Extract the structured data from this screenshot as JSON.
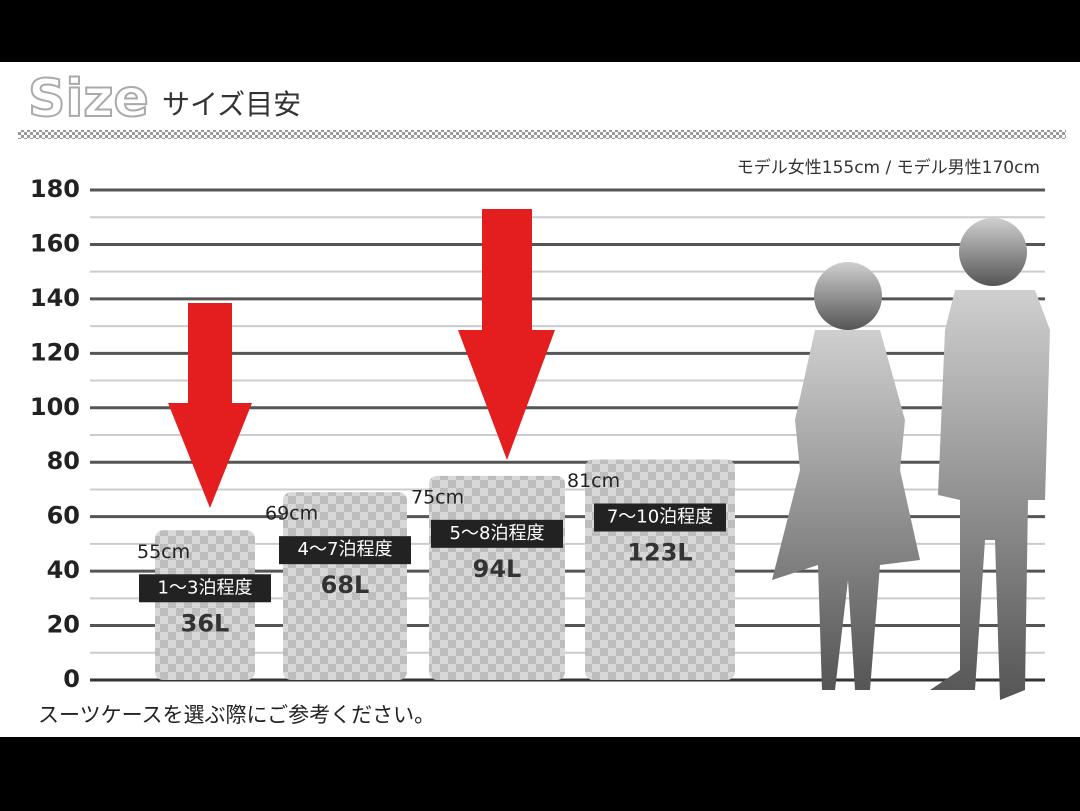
{
  "chart_data": {
    "type": "bar",
    "title": "Size",
    "subtitle": "サイズ目安",
    "note": "モデル女性155cm / モデル男性170cm",
    "categories": [
      "1～3泊程度",
      "4～7泊程度",
      "5～8泊程度",
      "7～10泊程度"
    ],
    "values": [
      55,
      69,
      75,
      81
    ],
    "value_labels": [
      "55cm",
      "69cm",
      "75cm",
      "81cm"
    ],
    "capacity_labels": [
      "36L",
      "68L",
      "94L",
      "123L"
    ],
    "ylim": [
      0,
      180
    ],
    "yticks": [
      0,
      20,
      40,
      60,
      80,
      100,
      120,
      140,
      160,
      180
    ],
    "grid": true,
    "footer": "スーツケースを選ぶ際にご参考ください。"
  }
}
